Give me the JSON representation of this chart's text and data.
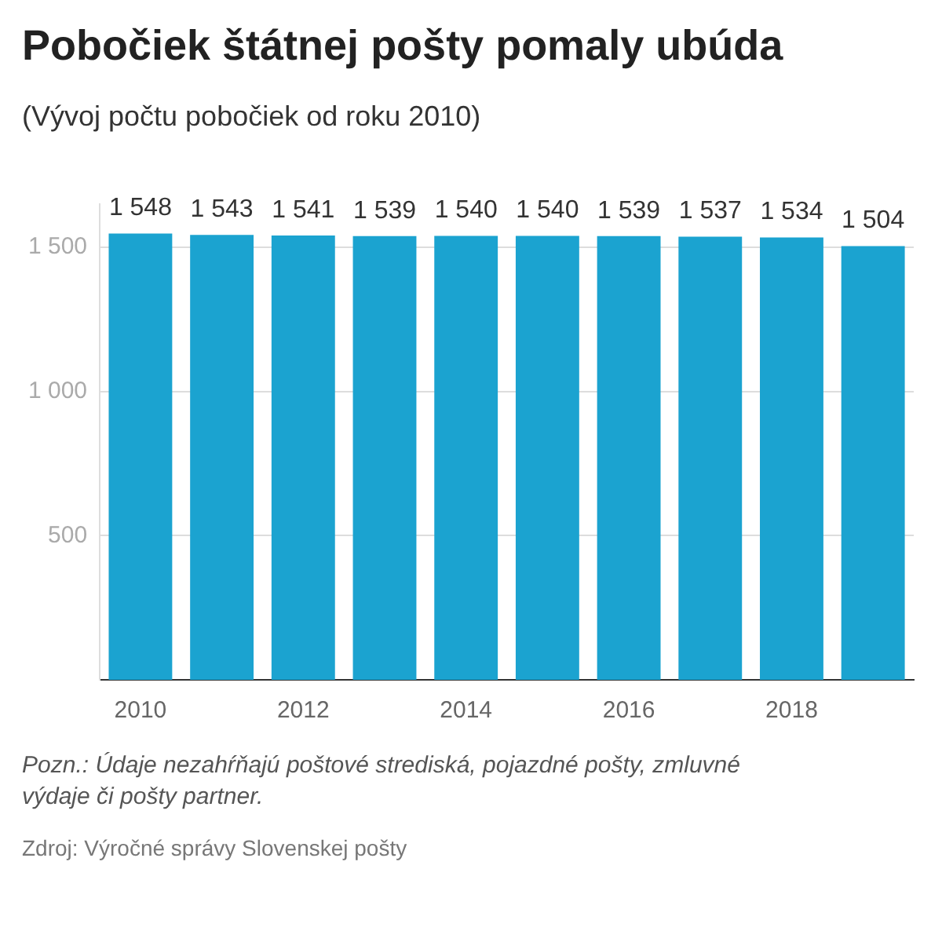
{
  "chart_data": {
    "type": "bar",
    "title": "Pobočiek štátnej pošty pomaly ubúda",
    "subtitle": "(Vývoj počtu pobočiek od roku 2010)",
    "categories": [
      "2010",
      null,
      "2012",
      null,
      "2014",
      null,
      "2016",
      null,
      "2018",
      null
    ],
    "values": [
      1548,
      1543,
      1541,
      1539,
      1540,
      1540,
      1539,
      1537,
      1534,
      1504
    ],
    "value_labels": [
      "1 548",
      "1 543",
      "1 541",
      "1 539",
      "1 540",
      "1 540",
      "1 539",
      "1 537",
      "1 534",
      "1 504"
    ],
    "color": "#1ba3d0",
    "ylim": [
      0,
      1650
    ],
    "yticks": [
      {
        "value": 500,
        "label": "500"
      },
      {
        "value": 1000,
        "label": "1 000"
      },
      {
        "value": 1500,
        "label": "1 500"
      }
    ],
    "grid": "y",
    "annotations": [
      "Pozn.: Údaje nezahŕňajú poštové strediská, pojazdné pošty, zmluvné výdaje či pošty partner.",
      "Zdroj: Výročné správy Slovenskej pošty"
    ]
  }
}
